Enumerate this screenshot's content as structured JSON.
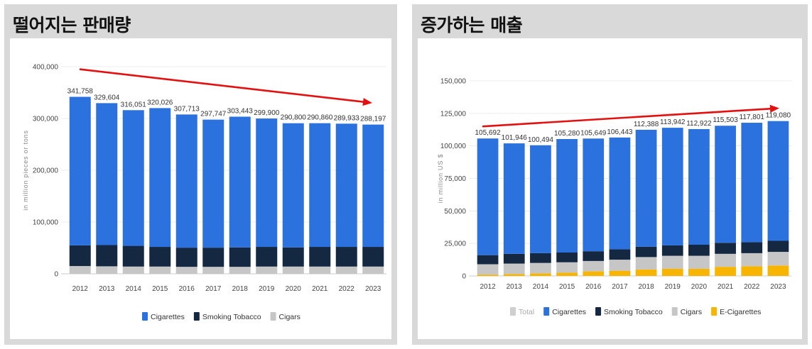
{
  "panels": {
    "left": {
      "title": "떨어지는 판매량"
    },
    "right": {
      "title": "증가하는 매출"
    }
  },
  "colors": {
    "cigarettes": "#2c72df",
    "smoking_tobacco": "#152841",
    "cigars": "#c6c6c6",
    "e_cigarettes": "#f8b500",
    "total": "#cfcfcf",
    "trend_arrow": "#e41010",
    "panel_bg": "#d9d9d9"
  },
  "chart_data": [
    {
      "type": "bar",
      "stacked": true,
      "title": "떨어지는 판매량",
      "ylabel": "in million pieces or tons",
      "ylim": [
        0,
        400000
      ],
      "yticks": [
        "0",
        "100,000",
        "200,000",
        "300,000",
        "400,000"
      ],
      "yticks_values": [
        0,
        100000,
        200000,
        300000,
        400000
      ],
      "categories": [
        "2012",
        "2013",
        "2014",
        "2015",
        "2016",
        "2017",
        "2018",
        "2019",
        "2020",
        "2021",
        "2022",
        "2023"
      ],
      "totals_labels": [
        "341,758",
        "329,604",
        "316,051",
        "320,026",
        "307,713",
        "297,747",
        "303,443",
        "299,900",
        "290,800",
        "290,860",
        "289,933",
        "288,197"
      ],
      "series": [
        {
          "name": "Cigars",
          "color_key": "cigars",
          "values": [
            15000,
            14500,
            14000,
            14000,
            13500,
            13500,
            13500,
            14000,
            14000,
            14000,
            14000,
            14000
          ]
        },
        {
          "name": "Smoking Tobacco",
          "color_key": "smoking_tobacco",
          "values": [
            40000,
            41000,
            40000,
            38000,
            37000,
            37000,
            37500,
            38000,
            37000,
            38000,
            38000,
            38000
          ]
        },
        {
          "name": "Cigarettes",
          "color_key": "cigarettes",
          "values": [
            286758,
            274104,
            262051,
            268026,
            257213,
            247247,
            252443,
            247900,
            239800,
            238860,
            237933,
            236197
          ]
        }
      ],
      "legend": [
        "Cigarettes",
        "Smoking Tobacco",
        "Cigars"
      ],
      "legend_position": "bottom",
      "trend": "down"
    },
    {
      "type": "bar",
      "stacked": true,
      "title": "증가하는 매출",
      "ylabel": "in million US $",
      "ylim": [
        0,
        150000
      ],
      "yticks": [
        "0",
        "25,000",
        "50,000",
        "75,000",
        "100,000",
        "125,000",
        "150,000"
      ],
      "yticks_values": [
        0,
        25000,
        50000,
        75000,
        100000,
        125000,
        150000
      ],
      "categories": [
        "2012",
        "2013",
        "2014",
        "2015",
        "2016",
        "2017",
        "2018",
        "2019",
        "2020",
        "2021",
        "2022",
        "2023"
      ],
      "totals_labels": [
        "105,692",
        "101,946",
        "100,494",
        "105,280",
        "105,649",
        "106,443",
        "112,388",
        "113,942",
        "112,922",
        "115,503",
        "117,801",
        "119,080"
      ],
      "series": [
        {
          "name": "E-Cigarettes",
          "color_key": "e_cigarettes",
          "values": [
            1000,
            1500,
            2000,
            2500,
            3500,
            4000,
            5000,
            5500,
            5500,
            7000,
            7500,
            8000
          ]
        },
        {
          "name": "Cigars",
          "color_key": "cigars",
          "values": [
            8000,
            8000,
            8000,
            8000,
            8000,
            8500,
            9500,
            10000,
            10000,
            10000,
            10000,
            10500
          ]
        },
        {
          "name": "Smoking Tobacco",
          "color_key": "smoking_tobacco",
          "values": [
            7000,
            7500,
            7500,
            7500,
            7500,
            8000,
            8000,
            8000,
            8500,
            8500,
            8500,
            8500
          ]
        },
        {
          "name": "Cigarettes",
          "color_key": "cigarettes",
          "values": [
            89692,
            84946,
            82994,
            87280,
            86649,
            85943,
            89888,
            90442,
            88922,
            90003,
            91801,
            92080
          ]
        }
      ],
      "legend": [
        "Total",
        "Cigarettes",
        "Smoking Tobacco",
        "Cigars",
        "E-Cigarettes"
      ],
      "legend_position": "bottom",
      "trend": "up"
    }
  ]
}
